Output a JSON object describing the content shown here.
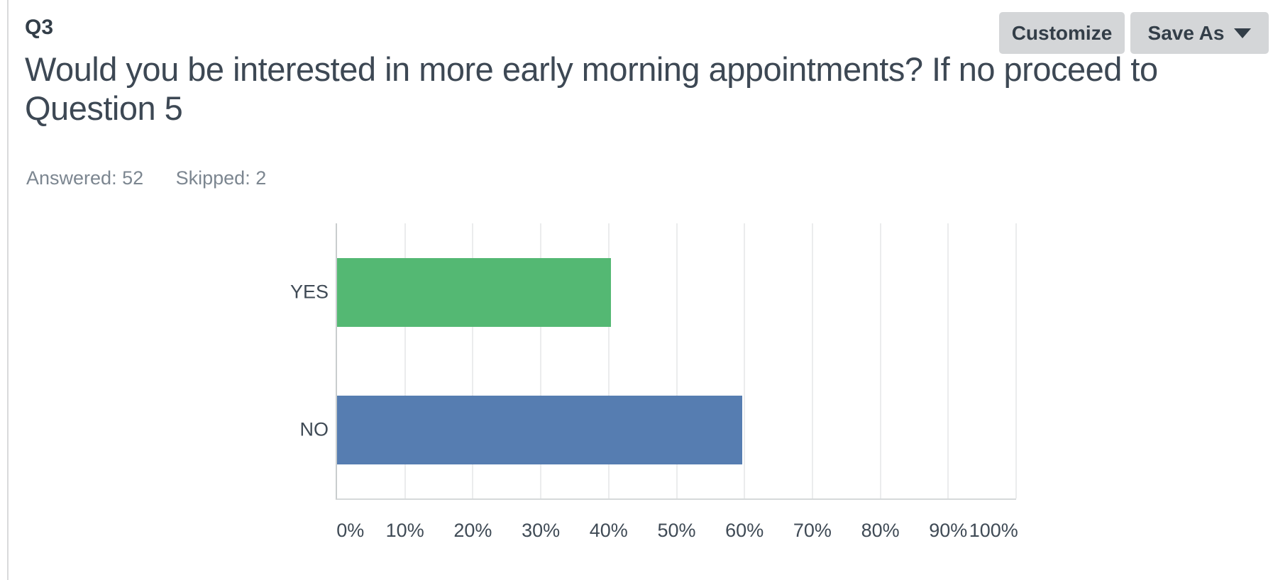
{
  "page": {
    "q_label": "Q3",
    "question_title": "Would you be interested in more early morning appointments? If no proceed to Question 5",
    "answered_text": "Answered: 52",
    "skipped_text": "Skipped: 2"
  },
  "toolbar": {
    "customize_label": "Customize",
    "save_as_label": "Save As",
    "save_as_icon": "chevron-down-icon"
  },
  "chart_data": {
    "type": "bar",
    "orientation": "horizontal",
    "categories": [
      "YES",
      "NO"
    ],
    "values": [
      40.38,
      59.62
    ],
    "bar_colors": [
      "#54b873",
      "#567db1"
    ],
    "x_tick_labels": [
      "0%",
      "10%",
      "20%",
      "30%",
      "40%",
      "50%",
      "60%",
      "70%",
      "80%",
      "90%",
      "100%"
    ],
    "x_tick_values": [
      0,
      10,
      20,
      30,
      40,
      50,
      60,
      70,
      80,
      90,
      100
    ],
    "xlim": [
      0,
      100
    ],
    "grid": "vertical",
    "title": "",
    "xlabel": "",
    "ylabel": "",
    "axis_color": "#c9cdce",
    "gridline_color": "#ebeced"
  }
}
